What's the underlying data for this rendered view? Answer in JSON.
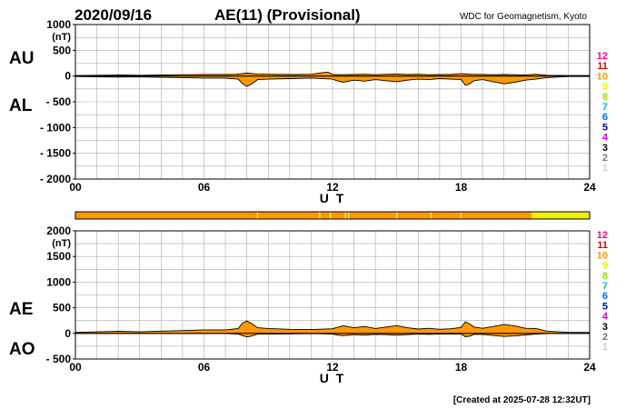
{
  "header": {
    "date": "2020/09/16",
    "title": "AE(11) (Provisional)",
    "source": "WDC for Geomagnetism, Kyoto"
  },
  "footer": {
    "created": "[Created at 2025-07-28 12:32UT]"
  },
  "panel_labels": {
    "top_upper": "AU",
    "top_lower": "AL",
    "bottom_upper": "AE",
    "bottom_lower": "AO"
  },
  "station_count_legend": {
    "items": [
      {
        "label": "12",
        "color": "#ff0080"
      },
      {
        "label": "11",
        "color": "#e00000"
      },
      {
        "label": "10",
        "color": "#ff9900"
      },
      {
        "label": "9",
        "color": "#f0f000"
      },
      {
        "label": "8",
        "color": "#99dd00"
      },
      {
        "label": "7",
        "color": "#00c0c0"
      },
      {
        "label": "6",
        "color": "#0066ff"
      },
      {
        "label": "5",
        "color": "#0000aa"
      },
      {
        "label": "4",
        "color": "#cc00cc"
      },
      {
        "label": "3",
        "color": "#000000"
      },
      {
        "label": "2",
        "color": "#777777"
      },
      {
        "label": "1",
        "color": "#cccccc"
      }
    ]
  },
  "colors": {
    "fill": "#ff9900",
    "grid": "#aaaaaa",
    "line": "#000000",
    "coverage_10": "#ff9900",
    "coverage_9": "#f0f000"
  },
  "chart_data": [
    {
      "type": "area",
      "panel": "AU/AL",
      "xlabel": "U T",
      "ylabel": "(nT)",
      "xlim": [
        0,
        24
      ],
      "ylim": [
        -2000,
        1000
      ],
      "x_ticks": [
        {
          "v": 0,
          "label": "00"
        },
        {
          "v": 6,
          "label": "06"
        },
        {
          "v": 12,
          "label": "12"
        },
        {
          "v": 18,
          "label": "18"
        },
        {
          "v": 24,
          "label": "24"
        }
      ],
      "y_ticks": [
        {
          "v": 1000,
          "label": "1000"
        },
        {
          "v": 500,
          "label": "500"
        },
        {
          "v": 0,
          "label": "0"
        },
        {
          "v": -500,
          "label": "- 500"
        },
        {
          "v": -1000,
          "label": "- 1000"
        },
        {
          "v": -1500,
          "label": "- 1500"
        },
        {
          "v": -2000,
          "label": "- 2000"
        }
      ],
      "grid": true,
      "series": [
        {
          "name": "AU",
          "x": [
            0,
            1,
            2,
            3,
            4,
            5,
            6,
            7,
            7.5,
            8,
            8.5,
            9,
            10,
            11,
            11.6,
            11.8,
            12,
            12.4,
            13,
            13.5,
            14,
            14.5,
            15,
            15.5,
            16,
            16.5,
            17,
            17.5,
            18,
            18.5,
            19,
            19.5,
            20,
            20.5,
            21,
            21.5,
            22,
            23,
            24
          ],
          "y": [
            10,
            15,
            20,
            15,
            20,
            25,
            30,
            30,
            35,
            55,
            40,
            35,
            30,
            35,
            70,
            75,
            30,
            25,
            30,
            35,
            25,
            35,
            40,
            30,
            35,
            25,
            30,
            30,
            45,
            35,
            30,
            25,
            30,
            25,
            20,
            35,
            15,
            10,
            10
          ]
        },
        {
          "name": "AL",
          "x": [
            0,
            1,
            2,
            3,
            4,
            5,
            6,
            7,
            7.6,
            7.8,
            8,
            8.2,
            8.5,
            9,
            10,
            11,
            12,
            12.2,
            12.5,
            13,
            13.5,
            14,
            14.5,
            15,
            15.5,
            16,
            16.5,
            17,
            17.5,
            18,
            18.2,
            18.4,
            18.6,
            19,
            19.5,
            20,
            20.5,
            21,
            21.5,
            22,
            23,
            24
          ],
          "y": [
            -10,
            -15,
            -20,
            -15,
            -25,
            -30,
            -40,
            -40,
            -60,
            -150,
            -200,
            -160,
            -70,
            -60,
            -50,
            -40,
            -60,
            -90,
            -120,
            -80,
            -100,
            -70,
            -90,
            -110,
            -80,
            -60,
            -70,
            -50,
            -60,
            -70,
            -180,
            -150,
            -90,
            -70,
            -110,
            -150,
            -120,
            -80,
            -60,
            -30,
            -10,
            -10
          ]
        }
      ]
    },
    {
      "type": "bar",
      "panel": "station coverage",
      "xlim": [
        0,
        24
      ],
      "segments": [
        {
          "start": 0,
          "end": 21.3,
          "stations": 10
        },
        {
          "start": 21.3,
          "end": 24,
          "stations": 9
        }
      ],
      "dropouts": [
        8.5,
        11.4,
        11.9,
        12.6,
        12.75,
        15.0,
        16.6,
        18.0
      ]
    },
    {
      "type": "area",
      "panel": "AE/AO",
      "xlabel": "U T",
      "ylabel": "(nT)",
      "xlim": [
        0,
        24
      ],
      "ylim": [
        -500,
        2000
      ],
      "x_ticks": [
        {
          "v": 0,
          "label": "00"
        },
        {
          "v": 6,
          "label": "06"
        },
        {
          "v": 12,
          "label": "12"
        },
        {
          "v": 18,
          "label": "18"
        },
        {
          "v": 24,
          "label": "24"
        }
      ],
      "y_ticks": [
        {
          "v": 2000,
          "label": "2000"
        },
        {
          "v": 1500,
          "label": "1500"
        },
        {
          "v": 1000,
          "label": "1000"
        },
        {
          "v": 500,
          "label": "500"
        },
        {
          "v": 0,
          "label": "0"
        },
        {
          "v": -500,
          "label": "- 500"
        }
      ],
      "grid": true,
      "series": [
        {
          "name": "AE",
          "x": [
            0,
            1,
            2,
            3,
            4,
            5,
            6,
            7,
            7.6,
            7.8,
            8,
            8.2,
            8.5,
            9,
            10,
            11,
            12,
            12.2,
            12.5,
            13,
            13.5,
            14,
            14.5,
            15,
            15.5,
            16,
            16.5,
            17,
            17.5,
            18,
            18.2,
            18.4,
            18.6,
            19,
            19.5,
            20,
            20.5,
            21,
            21.5,
            22,
            23,
            24
          ],
          "y": [
            20,
            30,
            40,
            30,
            45,
            55,
            70,
            70,
            95,
            205,
            240,
            200,
            110,
            95,
            80,
            75,
            90,
            115,
            150,
            110,
            135,
            95,
            125,
            150,
            110,
            85,
            100,
            80,
            90,
            115,
            225,
            185,
            125,
            100,
            135,
            175,
            145,
            100,
            95,
            45,
            20,
            20
          ]
        },
        {
          "name": "AO",
          "x": [
            0,
            1,
            2,
            3,
            4,
            5,
            6,
            7,
            7.6,
            7.8,
            8,
            8.2,
            8.5,
            9,
            10,
            11,
            12,
            12.2,
            12.5,
            13,
            13.5,
            14,
            14.5,
            15,
            15.5,
            16,
            16.5,
            17,
            17.5,
            18,
            18.2,
            18.4,
            18.6,
            19,
            19.5,
            20,
            20.5,
            21,
            21.5,
            22,
            23,
            24
          ],
          "y": [
            0,
            0,
            0,
            0,
            -2,
            -2,
            -5,
            -5,
            -12,
            -45,
            -70,
            -55,
            -15,
            -12,
            -10,
            -5,
            -15,
            -30,
            -45,
            -25,
            -35,
            -20,
            -25,
            -35,
            -25,
            -15,
            -20,
            -10,
            -15,
            -12,
            -65,
            -55,
            -20,
            -20,
            -40,
            -60,
            -50,
            -30,
            -15,
            -5,
            0,
            0
          ]
        }
      ]
    }
  ]
}
